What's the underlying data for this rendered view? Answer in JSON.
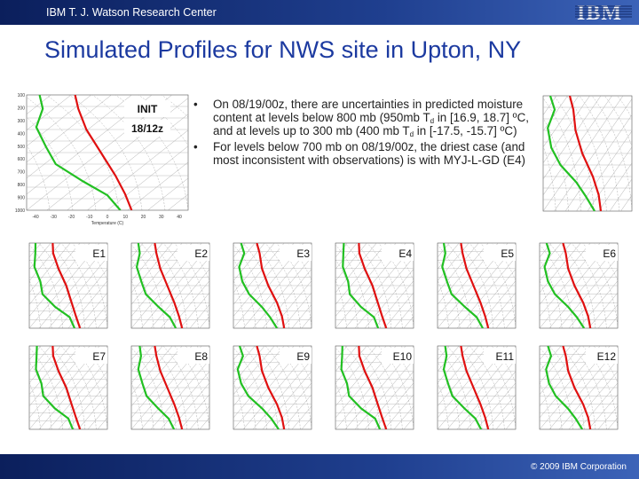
{
  "header": {
    "org": "IBM T. J. Watson Research Center",
    "logo": "IBM"
  },
  "title": "Simulated Profiles for NWS site in Upton, NY",
  "init_plot": {
    "labels": [
      "INIT",
      "18/12z"
    ],
    "pressure_ticks": [
      "100",
      "200",
      "300",
      "400",
      "500",
      "600",
      "700",
      "800",
      "900",
      "1000"
    ],
    "temperature_ticks": [
      "-40",
      "-30",
      "-20",
      "-10",
      "0",
      "10",
      "20",
      "30",
      "40"
    ],
    "x_axis_label": "Temperature (C)"
  },
  "bullets": [
    {
      "parts": [
        "On 08/19/00z, there are uncertainties in predicted moisture content at levels below 800 mb (950mb T",
        "d",
        " in [16.9, 18.7] ºC, and at levels up to 300 mb (400 mb T",
        "d",
        " in [-17.5, -15.7] ºC)"
      ]
    },
    {
      "parts": [
        "For levels below 700 mb on 08/19/00z, the driest case (and most inconsistent with observations) is with MYJ-L-GD (E4)"
      ]
    }
  ],
  "panels": [
    "E1",
    "E2",
    "E3",
    "E4",
    "E5",
    "E6",
    "E7",
    "E8",
    "E9",
    "E10",
    "E11",
    "E12"
  ],
  "footer": "© 2009 IBM Corporation"
}
